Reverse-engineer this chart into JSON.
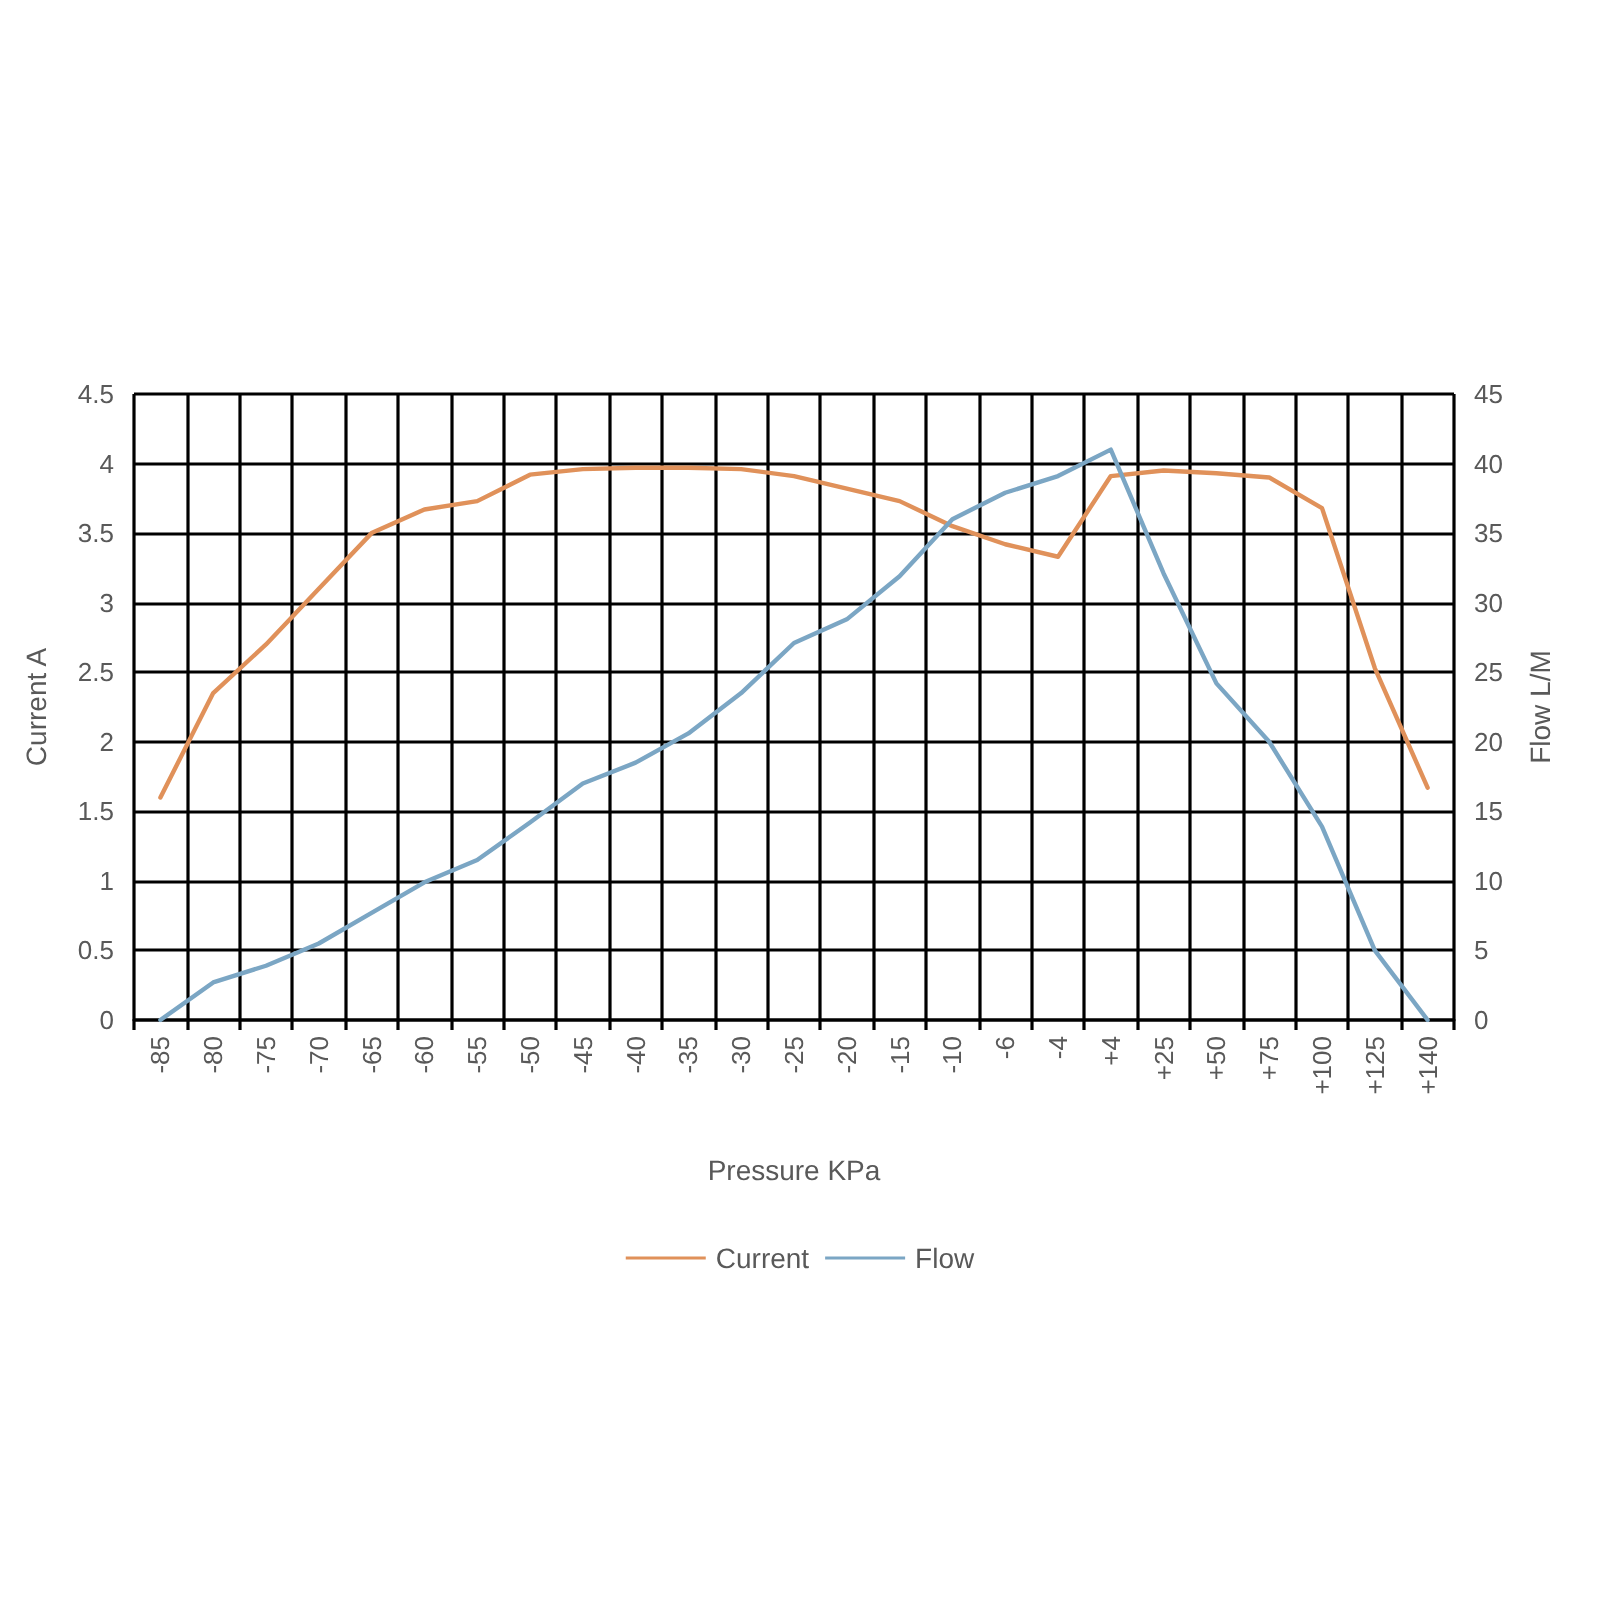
{
  "chart_data": {
    "type": "line",
    "xlabel": "Pressure KPa",
    "ylabel": "Current A",
    "y2label": "Flow L/M",
    "categories": [
      "-85",
      "-80",
      "-75",
      "-70",
      "-65",
      "-60",
      "-55",
      "-50",
      "-45",
      "-40",
      "-35",
      "-30",
      "-25",
      "-20",
      "-15",
      "-10",
      "-6",
      "-4",
      "+4",
      "+25",
      "+50",
      "+75",
      "+100",
      "+125",
      "+140"
    ],
    "series": [
      {
        "name": "Current",
        "color": "#e0915a",
        "values": [
          1.6,
          2.35,
          2.7,
          3.1,
          3.5,
          3.67,
          3.73,
          3.92,
          3.96,
          3.97,
          3.97,
          3.96,
          3.91,
          3.82,
          3.73,
          3.55,
          3.42,
          3.33,
          3.91,
          3.95,
          3.93,
          3.9,
          3.68,
          2.53,
          1.67
        ]
      },
      {
        "name": "Flow",
        "color": "#7ba6c4",
        "axis": "y2",
        "values": [
          0,
          2.7,
          3.9,
          5.5,
          7.7,
          9.9,
          11.5,
          14.2,
          17,
          18.5,
          20.6,
          23.5,
          27.1,
          28.8,
          31.9,
          36,
          37.9,
          39.1,
          41,
          32.1,
          24.2,
          20,
          13.9,
          5,
          0
        ]
      }
    ],
    "ylim": [
      0,
      4.5
    ],
    "yticks": [
      0,
      0.5,
      1,
      1.5,
      2,
      2.5,
      3,
      3.5,
      4,
      4.5
    ],
    "y2lim": [
      0,
      45
    ],
    "y2ticks": [
      0,
      5,
      10,
      15,
      20,
      25,
      30,
      35,
      40,
      45
    ],
    "grid": true,
    "legend": "bottom",
    "marker": "none",
    "line_style": "solid"
  }
}
